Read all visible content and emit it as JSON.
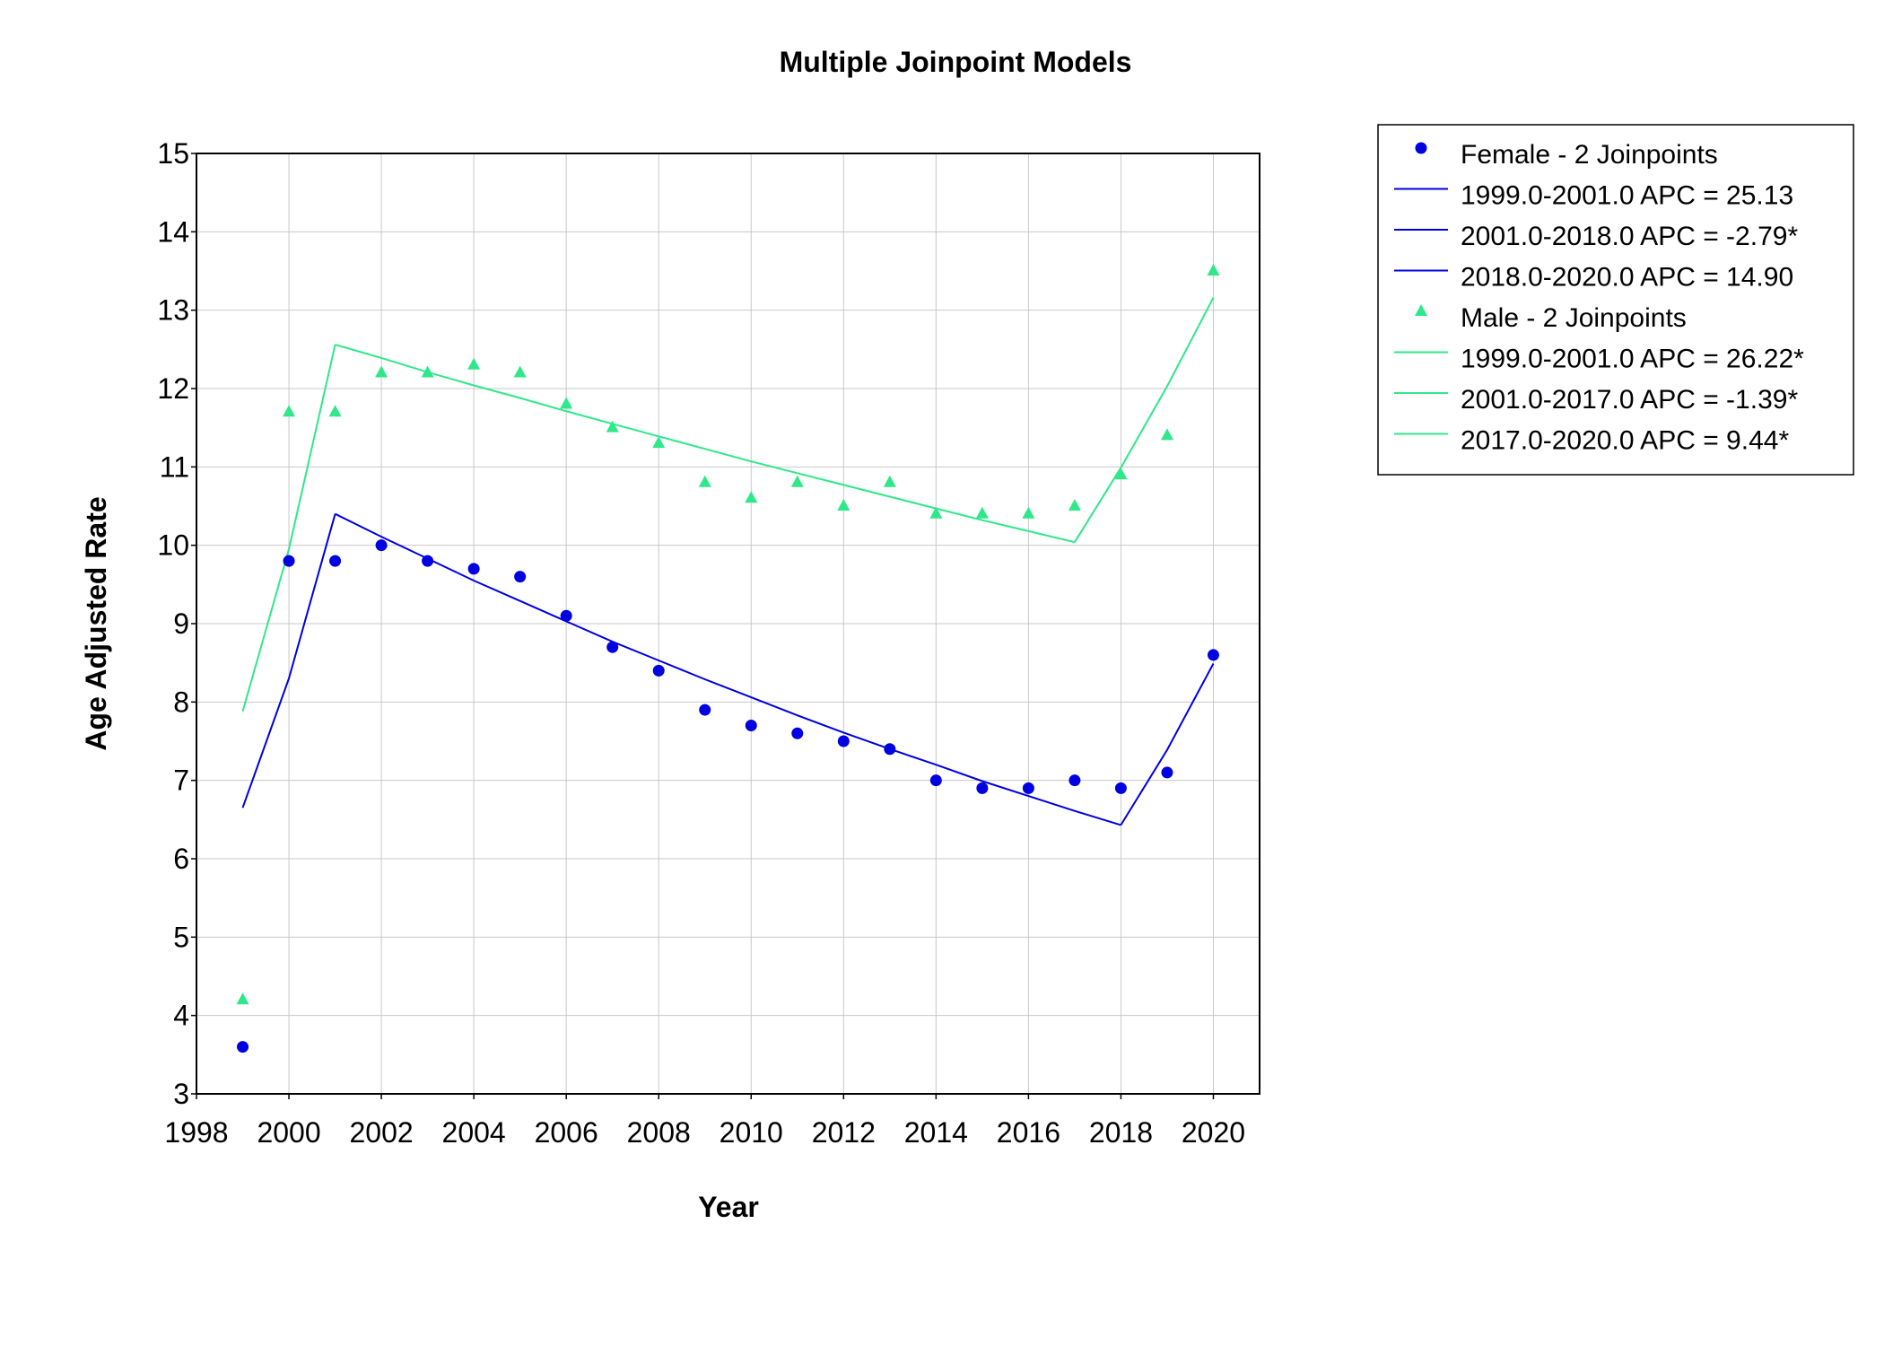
{
  "chart_data": {
    "type": "line",
    "title": "Multiple Joinpoint Models",
    "xlabel": "Year",
    "ylabel": "Age Adjusted Rate",
    "xlim": [
      1998,
      2021
    ],
    "ylim": [
      3,
      15
    ],
    "x_ticks": [
      1998,
      2000,
      2002,
      2004,
      2006,
      2008,
      2010,
      2012,
      2014,
      2016,
      2018,
      2020
    ],
    "y_ticks": [
      3,
      4,
      5,
      6,
      7,
      8,
      9,
      10,
      11,
      12,
      13,
      14,
      15
    ],
    "grid": true,
    "legend_position": "right",
    "series": [
      {
        "name": "Female - 2 Joinpoints",
        "color": "#0000e0",
        "marker": "circle",
        "observed": {
          "x": [
            1999,
            2000,
            2001,
            2002,
            2003,
            2004,
            2005,
            2006,
            2007,
            2008,
            2009,
            2010,
            2011,
            2012,
            2013,
            2014,
            2015,
            2016,
            2017,
            2018,
            2019,
            2020
          ],
          "y": [
            3.6,
            9.8,
            9.8,
            10.0,
            9.8,
            9.7,
            9.6,
            9.1,
            8.7,
            8.4,
            7.9,
            7.7,
            7.6,
            7.5,
            7.4,
            7.0,
            6.9,
            6.9,
            7.0,
            6.9,
            7.1,
            8.6
          ]
        },
        "segments": [
          {
            "label": "1999.0-2001.0 APC  = 25.13",
            "x": [
              1999,
              2000,
              2001
            ],
            "y": [
              6.65,
              8.3,
              10.4
            ]
          },
          {
            "label": "2001.0-2018.0 APC  = -2.79*",
            "x": [
              2001,
              2002,
              2003,
              2004,
              2005,
              2006,
              2007,
              2008,
              2009,
              2010,
              2011,
              2012,
              2013,
              2014,
              2015,
              2016,
              2017,
              2018
            ],
            "y": [
              10.4,
              10.11,
              9.83,
              9.55,
              9.29,
              9.03,
              8.77,
              8.53,
              8.29,
              8.06,
              7.83,
              7.61,
              7.4,
              7.2,
              6.99,
              6.8,
              6.61,
              6.43
            ]
          },
          {
            "label": "2018.0-2020.0 APC  = 14.90",
            "x": [
              2018,
              2019,
              2020
            ],
            "y": [
              6.43,
              7.39,
              8.49
            ]
          }
        ]
      },
      {
        "name": "Male - 2 Joinpoints",
        "color": "#2ee88a",
        "marker": "triangle",
        "observed": {
          "x": [
            1999,
            2000,
            2001,
            2002,
            2003,
            2004,
            2005,
            2006,
            2007,
            2008,
            2009,
            2010,
            2011,
            2012,
            2013,
            2014,
            2015,
            2016,
            2017,
            2018,
            2019,
            2020
          ],
          "y": [
            4.2,
            11.7,
            11.7,
            12.2,
            12.2,
            12.3,
            12.2,
            11.8,
            11.5,
            11.3,
            10.8,
            10.6,
            10.8,
            10.5,
            10.8,
            10.4,
            10.4,
            10.4,
            10.5,
            10.9,
            11.4,
            13.5
          ]
        },
        "segments": [
          {
            "label": "1999.0-2001.0 APC  = 26.22*",
            "x": [
              1999,
              2000,
              2001
            ],
            "y": [
              7.88,
              9.95,
              12.56
            ]
          },
          {
            "label": "2001.0-2017.0 APC  = -1.39*",
            "x": [
              2001,
              2002,
              2003,
              2004,
              2005,
              2006,
              2007,
              2008,
              2009,
              2010,
              2011,
              2012,
              2013,
              2014,
              2015,
              2016,
              2017
            ],
            "y": [
              12.56,
              12.39,
              12.21,
              12.04,
              11.88,
              11.71,
              11.55,
              11.39,
              11.23,
              11.07,
              10.92,
              10.77,
              10.62,
              10.47,
              10.32,
              10.18,
              10.04
            ]
          },
          {
            "label": "2017.0-2020.0 APC  =  9.44*",
            "x": [
              2017,
              2018,
              2019,
              2020
            ],
            "y": [
              10.04,
              10.99,
              12.03,
              13.16
            ]
          }
        ]
      }
    ]
  }
}
